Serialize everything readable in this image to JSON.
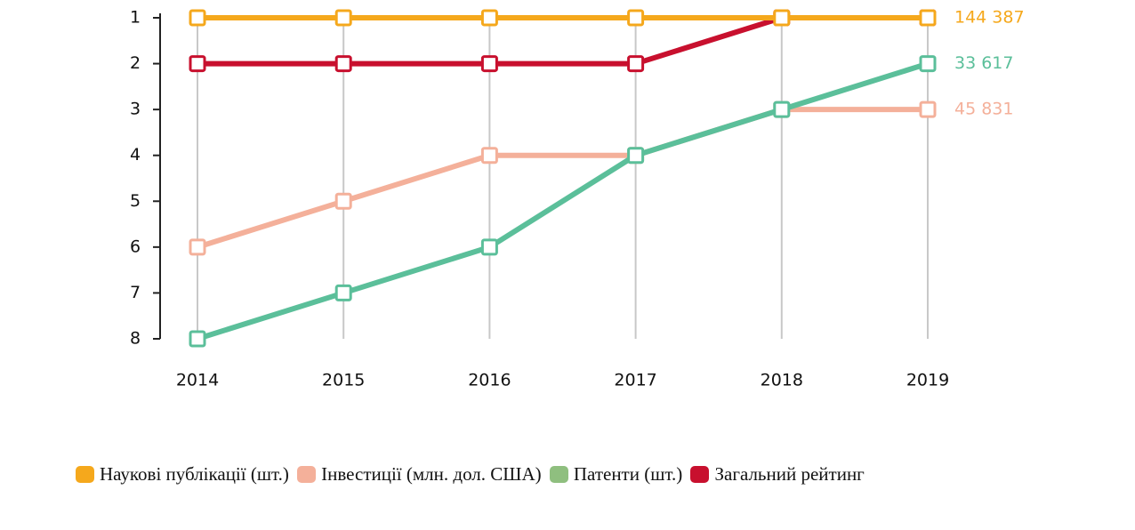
{
  "chart_data": {
    "type": "line",
    "x": [
      "2014",
      "2015",
      "2016",
      "2017",
      "2018",
      "2019"
    ],
    "ylim": [
      1,
      8
    ],
    "yticks": [
      1,
      2,
      3,
      4,
      5,
      6,
      7,
      8
    ],
    "y_inverted": true,
    "grid": true,
    "series": [
      {
        "name": "Наукові публікації (шт.)",
        "color": "#f5a81c",
        "legend_color": "#f5a81c",
        "values": [
          1,
          1,
          1,
          1,
          1,
          1
        ],
        "end_label": "144 387"
      },
      {
        "name": "Інвестиції (млн. дол. США)",
        "color": "#f4b09a",
        "legend_color": "#f4b09a",
        "values": [
          6,
          5,
          4,
          4,
          3,
          3
        ],
        "end_label": "45 831"
      },
      {
        "name": "Патенти (шт.)",
        "color": "#5bbf9a",
        "legend_color": "#8fbf7f",
        "values": [
          8,
          7,
          6,
          4,
          3,
          2
        ],
        "end_label": "33 617"
      },
      {
        "name": "Загальний рейтинг",
        "color": "#c8102e",
        "legend_color": "#c8102e",
        "values": [
          2,
          2,
          2,
          2,
          1,
          1
        ]
      }
    ]
  }
}
